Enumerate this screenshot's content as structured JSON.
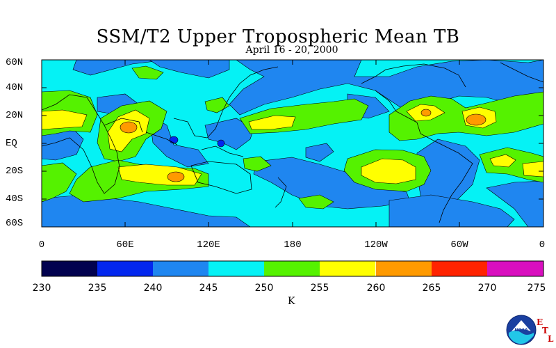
{
  "title": "SSM/T2 Upper Tropospheric Mean TB",
  "subtitle": "April 16 - 20, 2000",
  "lat_labels": [
    "60N",
    "40N",
    "20N",
    "EQ",
    "20S",
    "40S",
    "60S"
  ],
  "lon_labels": [
    "0",
    "60E",
    "120E",
    "180",
    "120W",
    "60W",
    "0"
  ],
  "colorbar": {
    "labels": [
      "230",
      "235",
      "240",
      "245",
      "250",
      "255",
      "260",
      "265",
      "270",
      "275"
    ],
    "colors": [
      "#02024f",
      "#0327ef",
      "#1f86f0",
      "#05f2f5",
      "#55f200",
      "#ffff00",
      "#ff9a00",
      "#ff2300",
      "#d90fbf"
    ],
    "units": "K"
  },
  "logo": {
    "text": "NOAA",
    "letters": [
      "E",
      "T",
      "L"
    ]
  },
  "palette": {
    "base": "#05f2f5",
    "low": "#1f86f0",
    "mid": "#55f200",
    "high": "#ffff00",
    "peak": "#ff9a00",
    "cold": "#0327ef"
  }
}
